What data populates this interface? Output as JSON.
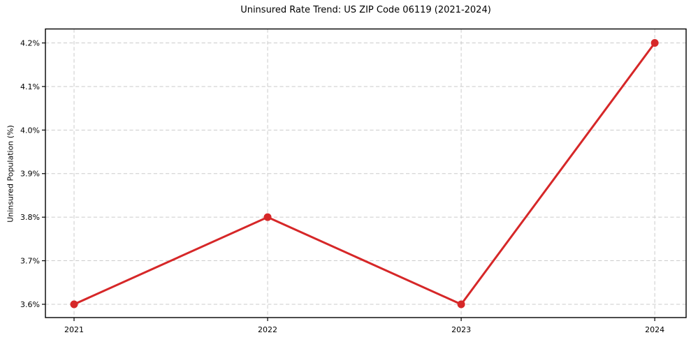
{
  "chart_data": {
    "type": "line",
    "title": "Uninsured Rate Trend: US ZIP Code 06119 (2021-2024)",
    "xlabel": "",
    "ylabel": "Uninsured Population (%)",
    "x": [
      2021,
      2022,
      2023,
      2024
    ],
    "xtick_labels": [
      "2021",
      "2022",
      "2023",
      "2024"
    ],
    "values": [
      3.6,
      3.8,
      3.6,
      4.2
    ],
    "yticks": [
      3.6,
      3.7,
      3.8,
      3.9,
      4.0,
      4.1,
      4.2
    ],
    "ytick_labels": [
      "3.6%",
      "3.7%",
      "3.8%",
      "3.9%",
      "4.0%",
      "4.1%",
      "4.2%"
    ],
    "ylim": [
      3.5695,
      4.2321
    ],
    "xlim": [
      2020.852,
      2024.162
    ],
    "grid": true,
    "grid_style": "dashed",
    "legend_position": "none",
    "marker": "circle",
    "line_width": 3,
    "marker_radius": 5.5,
    "colors": {
      "line": "#d62728",
      "marker": "#d62728",
      "grid": "#cbcbcb",
      "spine": "#000000",
      "text": "#000000",
      "background": "#ffffff"
    }
  }
}
